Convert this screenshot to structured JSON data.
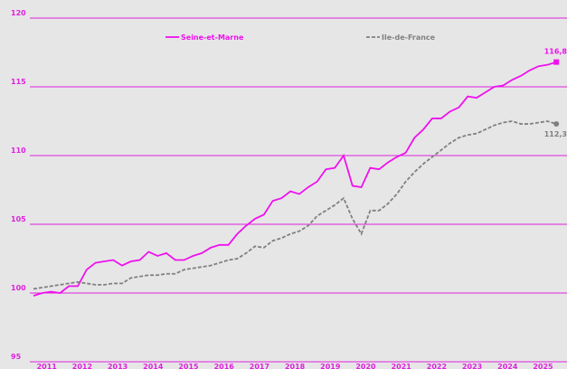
{
  "chart_data": {
    "type": "line",
    "categories": [
      null,
      "2011",
      null,
      null,
      null,
      "2012",
      null,
      null,
      null,
      "2013",
      null,
      null,
      null,
      "2014",
      null,
      null,
      null,
      "2015",
      null,
      null,
      null,
      "2016",
      null,
      null,
      null,
      "2017",
      null,
      null,
      null,
      "2018",
      null,
      null,
      null,
      "2019",
      null,
      null,
      null,
      "2020",
      null,
      null,
      null,
      "2021",
      null,
      null,
      null,
      "2022",
      null,
      null,
      null,
      "2023",
      null,
      null,
      null,
      "2024",
      null,
      null,
      null,
      "2025",
      null,
      null
    ],
    "series": [
      {
        "name": "Seine-et-Marne",
        "color": "#ee11ee",
        "marker": "square",
        "end_label": "116,8",
        "values": [
          99.8,
          100.0,
          100.1,
          100.0,
          100.5,
          100.5,
          101.7,
          102.2,
          102.3,
          102.4,
          102.0,
          102.3,
          102.4,
          103.0,
          102.7,
          102.9,
          102.4,
          102.4,
          102.7,
          102.9,
          103.3,
          103.5,
          103.5,
          104.3,
          104.9,
          105.4,
          105.7,
          106.7,
          106.9,
          107.4,
          107.2,
          107.7,
          108.1,
          109.0,
          109.1,
          110.0,
          107.8,
          107.7,
          109.1,
          109.0,
          109.5,
          109.9,
          110.2,
          111.3,
          111.9,
          112.7,
          112.7,
          113.2,
          113.5,
          114.3,
          114.2,
          114.6,
          115.0,
          115.1,
          115.5,
          115.8,
          116.2,
          116.5,
          116.6,
          116.8
        ]
      },
      {
        "name": "Ile-de-France",
        "color": "#808080",
        "dashed": true,
        "marker": "circle",
        "end_label": "112,3",
        "values": [
          100.3,
          100.4,
          100.5,
          100.6,
          100.7,
          100.8,
          100.7,
          100.6,
          100.6,
          100.7,
          100.7,
          101.1,
          101.2,
          101.3,
          101.3,
          101.4,
          101.4,
          101.7,
          101.8,
          101.9,
          102.0,
          102.2,
          102.4,
          102.5,
          102.9,
          103.4,
          103.3,
          103.8,
          104.0,
          104.3,
          104.5,
          104.9,
          105.6,
          106.0,
          106.4,
          106.9,
          105.4,
          104.3,
          106.0,
          106.0,
          106.5,
          107.2,
          108.1,
          108.8,
          109.4,
          109.9,
          110.4,
          110.9,
          111.3,
          111.5,
          111.6,
          111.9,
          112.2,
          112.4,
          112.5,
          112.3,
          112.3,
          112.4,
          112.5,
          112.3
        ]
      }
    ],
    "ylim": [
      95,
      120
    ],
    "yticks": [
      95,
      100,
      105,
      110,
      115,
      120
    ],
    "grid": true,
    "grid_color": "#dd22dd",
    "legend": "top"
  }
}
